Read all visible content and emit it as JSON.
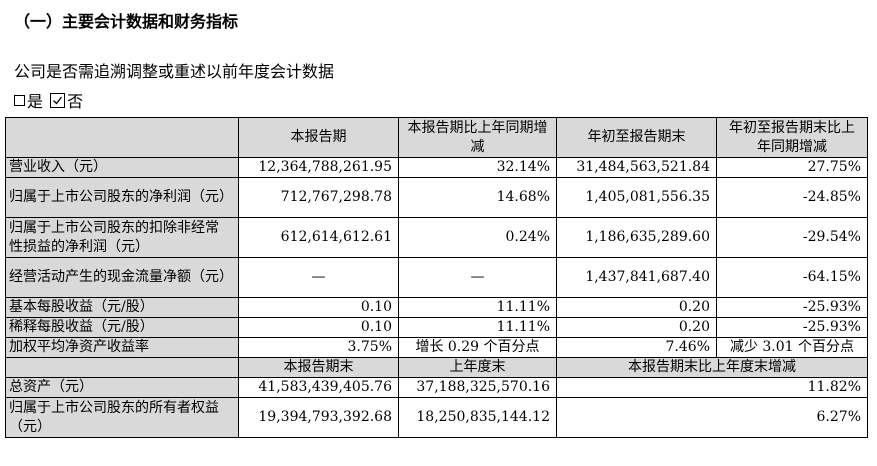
{
  "heading": "（一）主要会计数据和财务指标",
  "question": "公司是否需追溯调整或重述以前年度会计数据",
  "options": {
    "yes": "是",
    "no": "否",
    "no_checked": true
  },
  "table": {
    "header": [
      "",
      "本报告期",
      "本报告期比上年同期增减",
      "年初至报告期末",
      "年初至报告期末比上年同期增减"
    ],
    "rows": [
      {
        "label": "营业收入（元）",
        "c1": "12,364,788,261.95",
        "c2": "32.14%",
        "c3": "31,484,563,521.84",
        "c4": "27.75%"
      },
      {
        "label": "归属于上市公司股东的净利润（元）",
        "c1": "712,767,298.78",
        "c2": "14.68%",
        "c3": "1,405,081,556.35",
        "c4": "-24.85%"
      },
      {
        "label": "归属于上市公司股东的扣除非经常性损益的净利润（元）",
        "c1": "612,614,612.61",
        "c2": "0.24%",
        "c3": "1,186,635,289.60",
        "c4": "-29.54%"
      },
      {
        "label": "经营活动产生的现金流量净额（元）",
        "c1": "—",
        "c2": "—",
        "c3": "1,437,841,687.40",
        "c4": "-64.15%"
      },
      {
        "label": "基本每股收益（元/股）",
        "c1": "0.10",
        "c2": "11.11%",
        "c3": "0.20",
        "c4": "-25.93%"
      },
      {
        "label": "稀释每股收益（元/股）",
        "c1": "0.10",
        "c2": "11.11%",
        "c3": "0.20",
        "c4": "-25.93%"
      },
      {
        "label": "加权平均净资产收益率",
        "c1": "3.75%",
        "c2": "增长 0.29 个百分点",
        "c3": "7.46%",
        "c4": "减少 3.01 个百分点"
      }
    ],
    "header2": [
      "",
      "本报告期末",
      "上年度末",
      "本报告期末比上年度末增减"
    ],
    "rows2": [
      {
        "label": "总资产（元）",
        "c1": "41,583,439,405.76",
        "c2": "37,188,325,570.16",
        "c3": "11.82%"
      },
      {
        "label": "归属于上市公司股东的所有者权益（元）",
        "c1": "19,394,793,392.68",
        "c2": "18,250,835,144.12",
        "c3": "6.27%"
      }
    ]
  }
}
